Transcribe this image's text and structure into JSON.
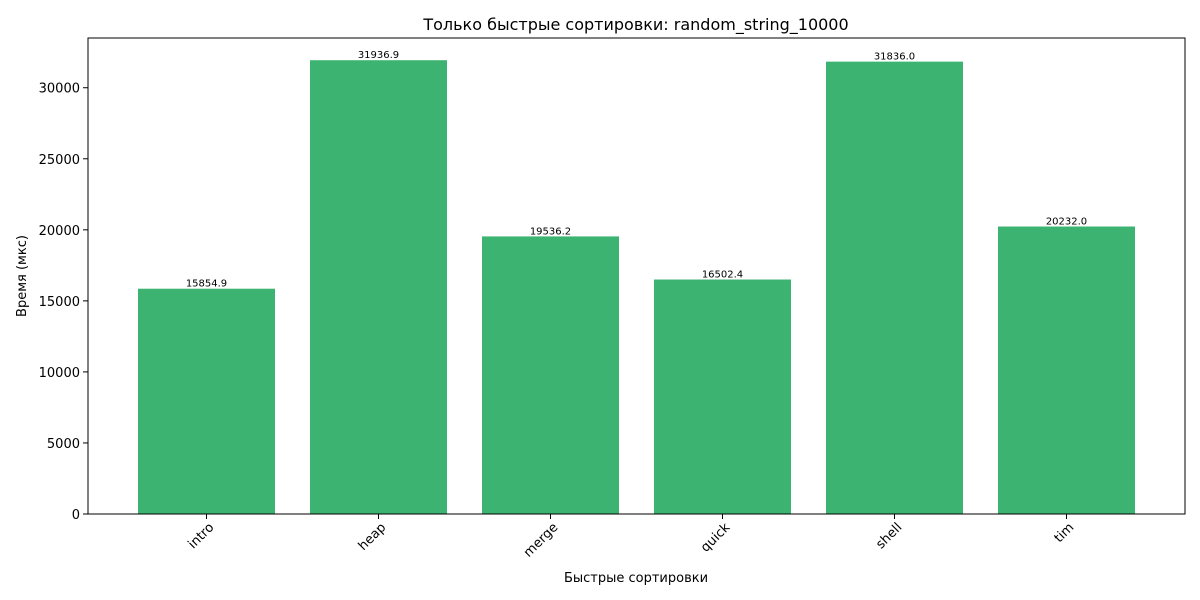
{
  "chart_data": {
    "type": "bar",
    "title": "Только быстрые сортировки: random_string_10000",
    "xlabel": "Быстрые сортировки",
    "ylabel": "Время (мкс)",
    "categories": [
      "intro",
      "heap",
      "merge",
      "quick",
      "shell",
      "tim"
    ],
    "values": [
      15854.9,
      31936.9,
      19536.2,
      16502.4,
      31836.0,
      20232.0
    ],
    "data_labels": [
      "15854.9",
      "31936.9",
      "19536.2",
      "16502.4",
      "31836.0",
      "20232.0"
    ],
    "ylim": [
      0,
      33500
    ],
    "yticks": [
      0,
      5000,
      10000,
      15000,
      20000,
      25000,
      30000
    ],
    "grid": false,
    "bar_color": "#3cb371"
  }
}
